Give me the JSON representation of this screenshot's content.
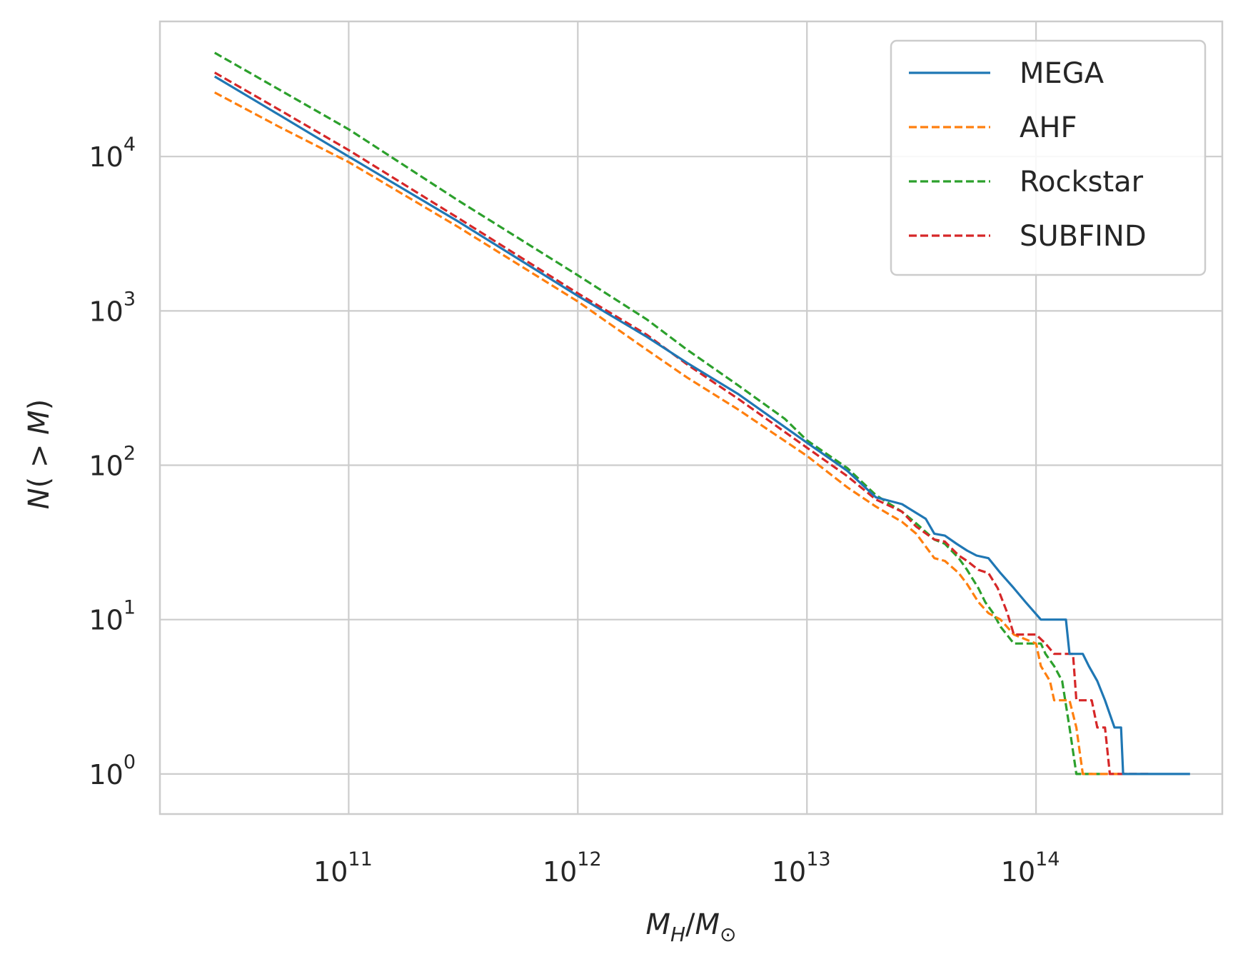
{
  "chart_data": {
    "type": "line",
    "title": "",
    "xlabel": {
      "main": "M",
      "sub1": "H",
      "slash": "/",
      "main2": "M",
      "sub2": "⊙"
    },
    "ylabel": {
      "pre": "N",
      "inner": "( > ",
      "var": "M",
      "post": ")"
    },
    "xscale": "log",
    "yscale": "log",
    "xlim": [
      15000000000.0,
      650000000000000.0
    ],
    "ylim": [
      0.55,
      75000
    ],
    "x_ticks": [
      {
        "value": 100000000000.0,
        "base": "10",
        "exp": "11"
      },
      {
        "value": 1000000000000.0,
        "base": "10",
        "exp": "12"
      },
      {
        "value": 10000000000000.0,
        "base": "10",
        "exp": "13"
      },
      {
        "value": 100000000000000.0,
        "base": "10",
        "exp": "14"
      }
    ],
    "y_ticks": [
      {
        "value": 1,
        "base": "10",
        "exp": "0"
      },
      {
        "value": 10,
        "base": "10",
        "exp": "1"
      },
      {
        "value": 100,
        "base": "10",
        "exp": "2"
      },
      {
        "value": 1000,
        "base": "10",
        "exp": "3"
      },
      {
        "value": 10000,
        "base": "10",
        "exp": "4"
      }
    ],
    "grid": true,
    "legend_position": "top-right",
    "series": [
      {
        "name": "MEGA",
        "color": "#1f77b4",
        "style": "solid",
        "points": [
          [
            26000000000.0,
            33000
          ],
          [
            50000000000.0,
            18500
          ],
          [
            100000000000.0,
            10000
          ],
          [
            300000000000.0,
            3800
          ],
          [
            1000000000000.0,
            1250
          ],
          [
            2000000000000.0,
            680
          ],
          [
            3000000000000.0,
            460
          ],
          [
            5000000000000.0,
            290
          ],
          [
            10000000000000.0,
            140
          ],
          [
            15000000000000.0,
            92
          ],
          [
            20000000000000.0,
            62
          ],
          [
            26000000000000.0,
            56
          ],
          [
            33000000000000.0,
            45
          ],
          [
            36000000000000.0,
            36
          ],
          [
            40000000000000.0,
            35
          ],
          [
            45000000000000.0,
            31
          ],
          [
            50000000000000.0,
            28
          ],
          [
            55000000000000.0,
            26
          ],
          [
            62000000000000.0,
            25
          ],
          [
            70000000000000.0,
            20
          ],
          [
            80000000000000.0,
            16
          ],
          [
            90000000000000.0,
            13
          ],
          [
            105000000000000.0,
            10
          ],
          [
            120000000000000.0,
            10
          ],
          [
            135000000000000.0,
            10
          ],
          [
            140000000000000.0,
            6
          ],
          [
            160000000000000.0,
            6
          ],
          [
            170000000000000.0,
            5
          ],
          [
            185000000000000.0,
            4
          ],
          [
            200000000000000.0,
            3
          ],
          [
            220000000000000.0,
            2
          ],
          [
            235000000000000.0,
            2
          ],
          [
            240000000000000.0,
            1
          ],
          [
            470000000000000.0,
            1
          ]
        ]
      },
      {
        "name": "AHF",
        "color": "#ff7f0e",
        "style": "dashed",
        "points": [
          [
            26000000000.0,
            26000
          ],
          [
            50000000000.0,
            15500
          ],
          [
            100000000000.0,
            9200
          ],
          [
            300000000000.0,
            3500
          ],
          [
            1000000000000.0,
            1150
          ],
          [
            2000000000000.0,
            560
          ],
          [
            3000000000000.0,
            370
          ],
          [
            5000000000000.0,
            230
          ],
          [
            10000000000000.0,
            115
          ],
          [
            15000000000000.0,
            72
          ],
          [
            20000000000000.0,
            54
          ],
          [
            26000000000000.0,
            43
          ],
          [
            30000000000000.0,
            36
          ],
          [
            36000000000000.0,
            25
          ],
          [
            40000000000000.0,
            24
          ],
          [
            46000000000000.0,
            20
          ],
          [
            50000000000000.0,
            17
          ],
          [
            56000000000000.0,
            13
          ],
          [
            62000000000000.0,
            11
          ],
          [
            70000000000000.0,
            10
          ],
          [
            80000000000000.0,
            8
          ],
          [
            100000000000000.0,
            7
          ],
          [
            105000000000000.0,
            5
          ],
          [
            115000000000000.0,
            4
          ],
          [
            120000000000000.0,
            3
          ],
          [
            140000000000000.0,
            3
          ],
          [
            150000000000000.0,
            2
          ],
          [
            160000000000000.0,
            1
          ],
          [
            250000000000000.0,
            1
          ]
        ]
      },
      {
        "name": "Rockstar",
        "color": "#2ca02c",
        "style": "dashed",
        "points": [
          [
            26000000000.0,
            47000
          ],
          [
            50000000000.0,
            27000
          ],
          [
            100000000000.0,
            15000
          ],
          [
            300000000000.0,
            5200
          ],
          [
            1000000000000.0,
            1700
          ],
          [
            2000000000000.0,
            880
          ],
          [
            3000000000000.0,
            560
          ],
          [
            5000000000000.0,
            330
          ],
          [
            8000000000000.0,
            200
          ],
          [
            10000000000000.0,
            145
          ],
          [
            15000000000000.0,
            96
          ],
          [
            20000000000000.0,
            64
          ],
          [
            26000000000000.0,
            50
          ],
          [
            30000000000000.0,
            42
          ],
          [
            36000000000000.0,
            33
          ],
          [
            40000000000000.0,
            31
          ],
          [
            46000000000000.0,
            25
          ],
          [
            50000000000000.0,
            21
          ],
          [
            56000000000000.0,
            16
          ],
          [
            60000000000000.0,
            13
          ],
          [
            65000000000000.0,
            11
          ],
          [
            70000000000000.0,
            9
          ],
          [
            80000000000000.0,
            7
          ],
          [
            105000000000000.0,
            7
          ],
          [
            110000000000000.0,
            6
          ],
          [
            120000000000000.0,
            5
          ],
          [
            130000000000000.0,
            4
          ],
          [
            140000000000000.0,
            2
          ],
          [
            150000000000000.0,
            1
          ],
          [
            190000000000000.0,
            1
          ]
        ]
      },
      {
        "name": "SUBFIND",
        "color": "#d62728",
        "style": "dashed",
        "points": [
          [
            26000000000.0,
            35000
          ],
          [
            50000000000.0,
            20000
          ],
          [
            100000000000.0,
            11000
          ],
          [
            300000000000.0,
            4000
          ],
          [
            1000000000000.0,
            1300
          ],
          [
            2000000000000.0,
            700
          ],
          [
            3000000000000.0,
            450
          ],
          [
            5000000000000.0,
            270
          ],
          [
            10000000000000.0,
            130
          ],
          [
            15000000000000.0,
            85
          ],
          [
            20000000000000.0,
            60
          ],
          [
            26000000000000.0,
            50
          ],
          [
            30000000000000.0,
            40
          ],
          [
            36000000000000.0,
            33
          ],
          [
            40000000000000.0,
            32
          ],
          [
            46000000000000.0,
            26
          ],
          [
            50000000000000.0,
            24
          ],
          [
            56000000000000.0,
            21
          ],
          [
            62000000000000.0,
            20
          ],
          [
            68000000000000.0,
            16
          ],
          [
            75000000000000.0,
            11
          ],
          [
            80000000000000.0,
            8
          ],
          [
            100000000000000.0,
            8
          ],
          [
            110000000000000.0,
            7
          ],
          [
            120000000000000.0,
            6
          ],
          [
            145000000000000.0,
            6
          ],
          [
            150000000000000.0,
            3
          ],
          [
            160000000000000.0,
            3
          ],
          [
            175000000000000.0,
            3
          ],
          [
            185000000000000.0,
            2
          ],
          [
            200000000000000.0,
            2
          ],
          [
            210000000000000.0,
            1
          ],
          [
            310000000000000.0,
            1
          ]
        ]
      }
    ]
  }
}
